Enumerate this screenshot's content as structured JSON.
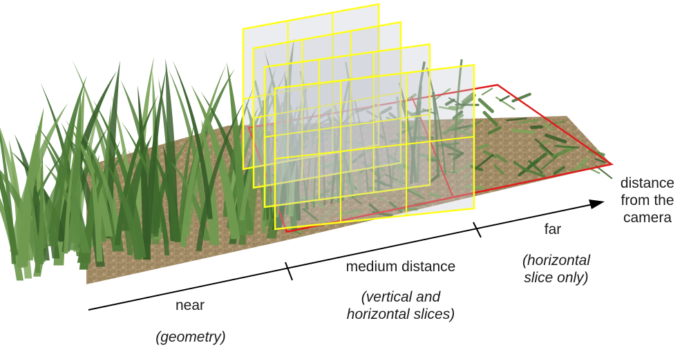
{
  "axis": {
    "label_line1": "distance",
    "label_line2": "from the",
    "label_line3": "camera"
  },
  "zones": {
    "near": {
      "label": "near",
      "note": "(geometry)"
    },
    "medium": {
      "label": "medium distance",
      "note_line1": "(vertical and",
      "note_line2": "horizontal slices)"
    },
    "far": {
      "label": "far",
      "note_line1": "(horizontal",
      "note_line2": "slice only)"
    }
  },
  "colors": {
    "ground": "#a8906a",
    "grass_dark": "#3f6a2e",
    "grass_light": "#6f9a50",
    "vertical_slices": "#ffff1a",
    "horizontal_slice": "#e11b1b",
    "axis": "#000000"
  }
}
